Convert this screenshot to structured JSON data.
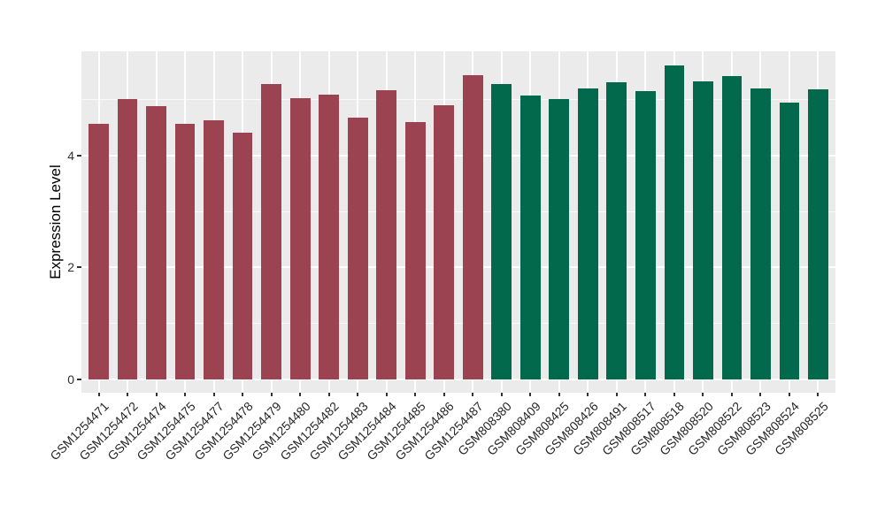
{
  "chart_data": {
    "type": "bar",
    "title": "",
    "xlabel": "",
    "ylabel": "Expression Level",
    "ylim": [
      -0.24,
      5.87
    ],
    "yticks": [
      0,
      2,
      4
    ],
    "gridline_values": [
      0,
      1,
      2,
      3,
      4,
      5
    ],
    "grid": true,
    "legend_position": "none",
    "panel_background": "#EBEBEB",
    "grid_color": "#FFFFFF",
    "tick_mark_color": "#333333",
    "tick_label_color": "#262626",
    "group_colors": {
      "group1": "#9C4351",
      "group2": "#02694C"
    },
    "bars": [
      {
        "label": "GSM1254471",
        "value": 4.57,
        "group": "group1"
      },
      {
        "label": "GSM1254472",
        "value": 5.01,
        "group": "group1"
      },
      {
        "label": "GSM1254474",
        "value": 4.89,
        "group": "group1"
      },
      {
        "label": "GSM1254475",
        "value": 4.57,
        "group": "group1"
      },
      {
        "label": "GSM1254477",
        "value": 4.64,
        "group": "group1"
      },
      {
        "label": "GSM1254478",
        "value": 4.41,
        "group": "group1"
      },
      {
        "label": "GSM1254479",
        "value": 5.28,
        "group": "group1"
      },
      {
        "label": "GSM1254480",
        "value": 5.03,
        "group": "group1"
      },
      {
        "label": "GSM1254482",
        "value": 5.09,
        "group": "group1"
      },
      {
        "label": "GSM1254483",
        "value": 4.69,
        "group": "group1"
      },
      {
        "label": "GSM1254484",
        "value": 5.18,
        "group": "group1"
      },
      {
        "label": "GSM1254485",
        "value": 4.6,
        "group": "group1"
      },
      {
        "label": "GSM1254486",
        "value": 4.9,
        "group": "group1"
      },
      {
        "label": "GSM1254487",
        "value": 5.44,
        "group": "group1"
      },
      {
        "label": "GSM808380",
        "value": 5.28,
        "group": "group2"
      },
      {
        "label": "GSM808409",
        "value": 5.08,
        "group": "group2"
      },
      {
        "label": "GSM808425",
        "value": 5.02,
        "group": "group2"
      },
      {
        "label": "GSM808426",
        "value": 5.2,
        "group": "group2"
      },
      {
        "label": "GSM808491",
        "value": 5.32,
        "group": "group2"
      },
      {
        "label": "GSM808517",
        "value": 5.15,
        "group": "group2"
      },
      {
        "label": "GSM808518",
        "value": 5.61,
        "group": "group2"
      },
      {
        "label": "GSM808520",
        "value": 5.33,
        "group": "group2"
      },
      {
        "label": "GSM808522",
        "value": 5.43,
        "group": "group2"
      },
      {
        "label": "GSM808523",
        "value": 5.2,
        "group": "group2"
      },
      {
        "label": "GSM808524",
        "value": 4.95,
        "group": "group2"
      },
      {
        "label": "GSM808525",
        "value": 5.19,
        "group": "group2"
      }
    ]
  }
}
